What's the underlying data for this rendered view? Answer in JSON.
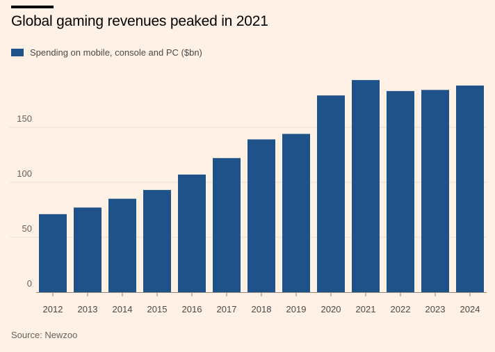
{
  "chart_data": {
    "type": "bar",
    "title": "Global gaming revenues peaked in 2021",
    "categories": [
      "2012",
      "2013",
      "2014",
      "2015",
      "2016",
      "2017",
      "2018",
      "2019",
      "2020",
      "2021",
      "2022",
      "2023",
      "2024"
    ],
    "series": [
      {
        "name": "Spending on mobile, console and PC ($bn)",
        "values": [
          71,
          77,
          85,
          93,
          107,
          122,
          139,
          144,
          179,
          193,
          183,
          184,
          188
        ],
        "color": "#1f5289"
      }
    ],
    "y_ticks": [
      "0",
      "50",
      "100",
      "150"
    ],
    "y_tick_values": [
      0,
      50,
      100,
      150
    ],
    "ylim": [
      0,
      200
    ],
    "xlabel": "",
    "ylabel": "",
    "grid": "horizontal",
    "legend": "top-left",
    "source": "Source: Newzoo",
    "colors": {
      "background": "#fff1e5",
      "grid": "#e9ddd2",
      "axis": "#8a8380",
      "bar": "#1f5289"
    }
  }
}
